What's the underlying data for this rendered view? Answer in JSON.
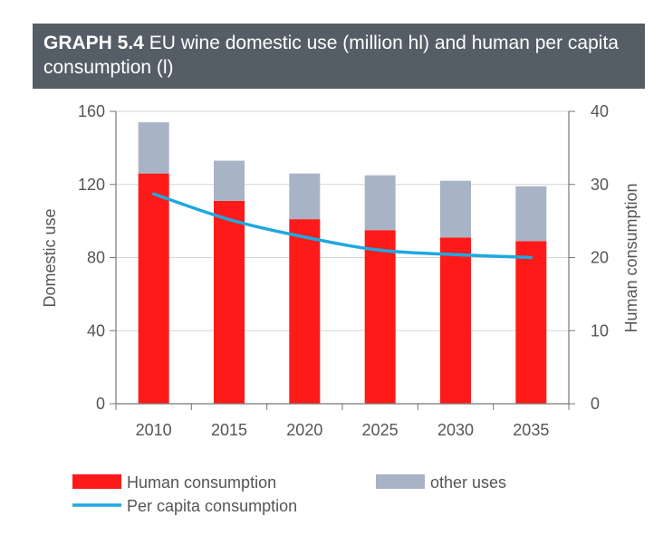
{
  "header": {
    "graph_number": "GRAPH 5.4",
    "title": "EU wine domestic use (million hl) and human per capita consumption (l)"
  },
  "chart_data": {
    "type": "bar",
    "stacked": true,
    "categories": [
      "2010",
      "2015",
      "2020",
      "2025",
      "2030",
      "2035"
    ],
    "series": [
      {
        "name": "Human consumption",
        "axis": "left",
        "color": "#ff1a1a",
        "values": [
          126,
          111,
          101,
          95,
          91,
          89
        ]
      },
      {
        "name": "other uses",
        "axis": "left",
        "color": "#a9b3c6",
        "values": [
          28,
          22,
          25,
          30,
          31,
          30
        ]
      },
      {
        "name": "Per capita consumption",
        "type": "line",
        "axis": "right",
        "color": "#1fa8e0",
        "values": [
          28.7,
          25.2,
          22.8,
          21.0,
          20.4,
          20.0
        ]
      }
    ],
    "left_axis": {
      "label": "Domestic use",
      "min": 0,
      "max": 160,
      "ticks": [
        "0",
        "40",
        "80",
        "120",
        "160"
      ]
    },
    "right_axis": {
      "label": "Human consumption",
      "min": 0,
      "max": 40,
      "ticks": [
        "0",
        "10",
        "20",
        "30",
        "40"
      ]
    },
    "grid": "horizontal",
    "legend_position": "bottom"
  }
}
